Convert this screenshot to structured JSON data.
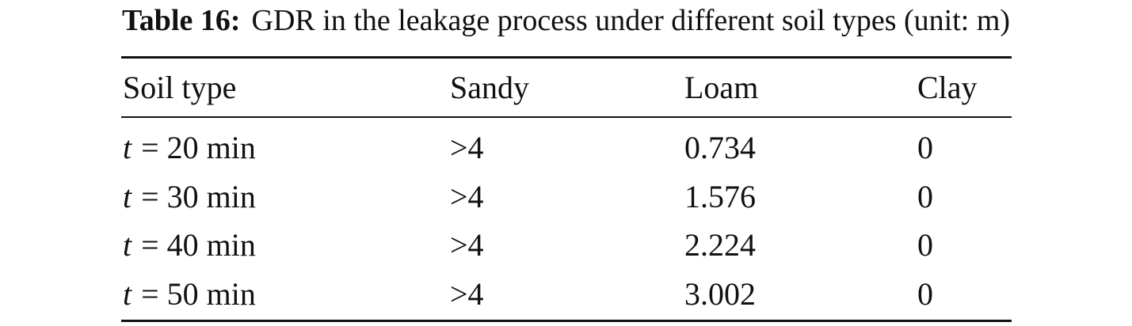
{
  "caption": {
    "label": "Table 16:",
    "text": "GDR in the leakage process under different soil types (unit: m)"
  },
  "table": {
    "header": [
      "Soil type",
      "Sandy",
      "Loam",
      "Clay"
    ],
    "rows": [
      [
        "t = 20 min",
        ">4",
        0.734,
        0
      ],
      [
        "t = 30 min",
        ">4",
        1.576,
        0
      ],
      [
        "t = 40 min",
        ">4",
        2.224,
        0
      ],
      [
        "t = 50 min",
        ">4",
        3.002,
        0
      ]
    ]
  }
}
